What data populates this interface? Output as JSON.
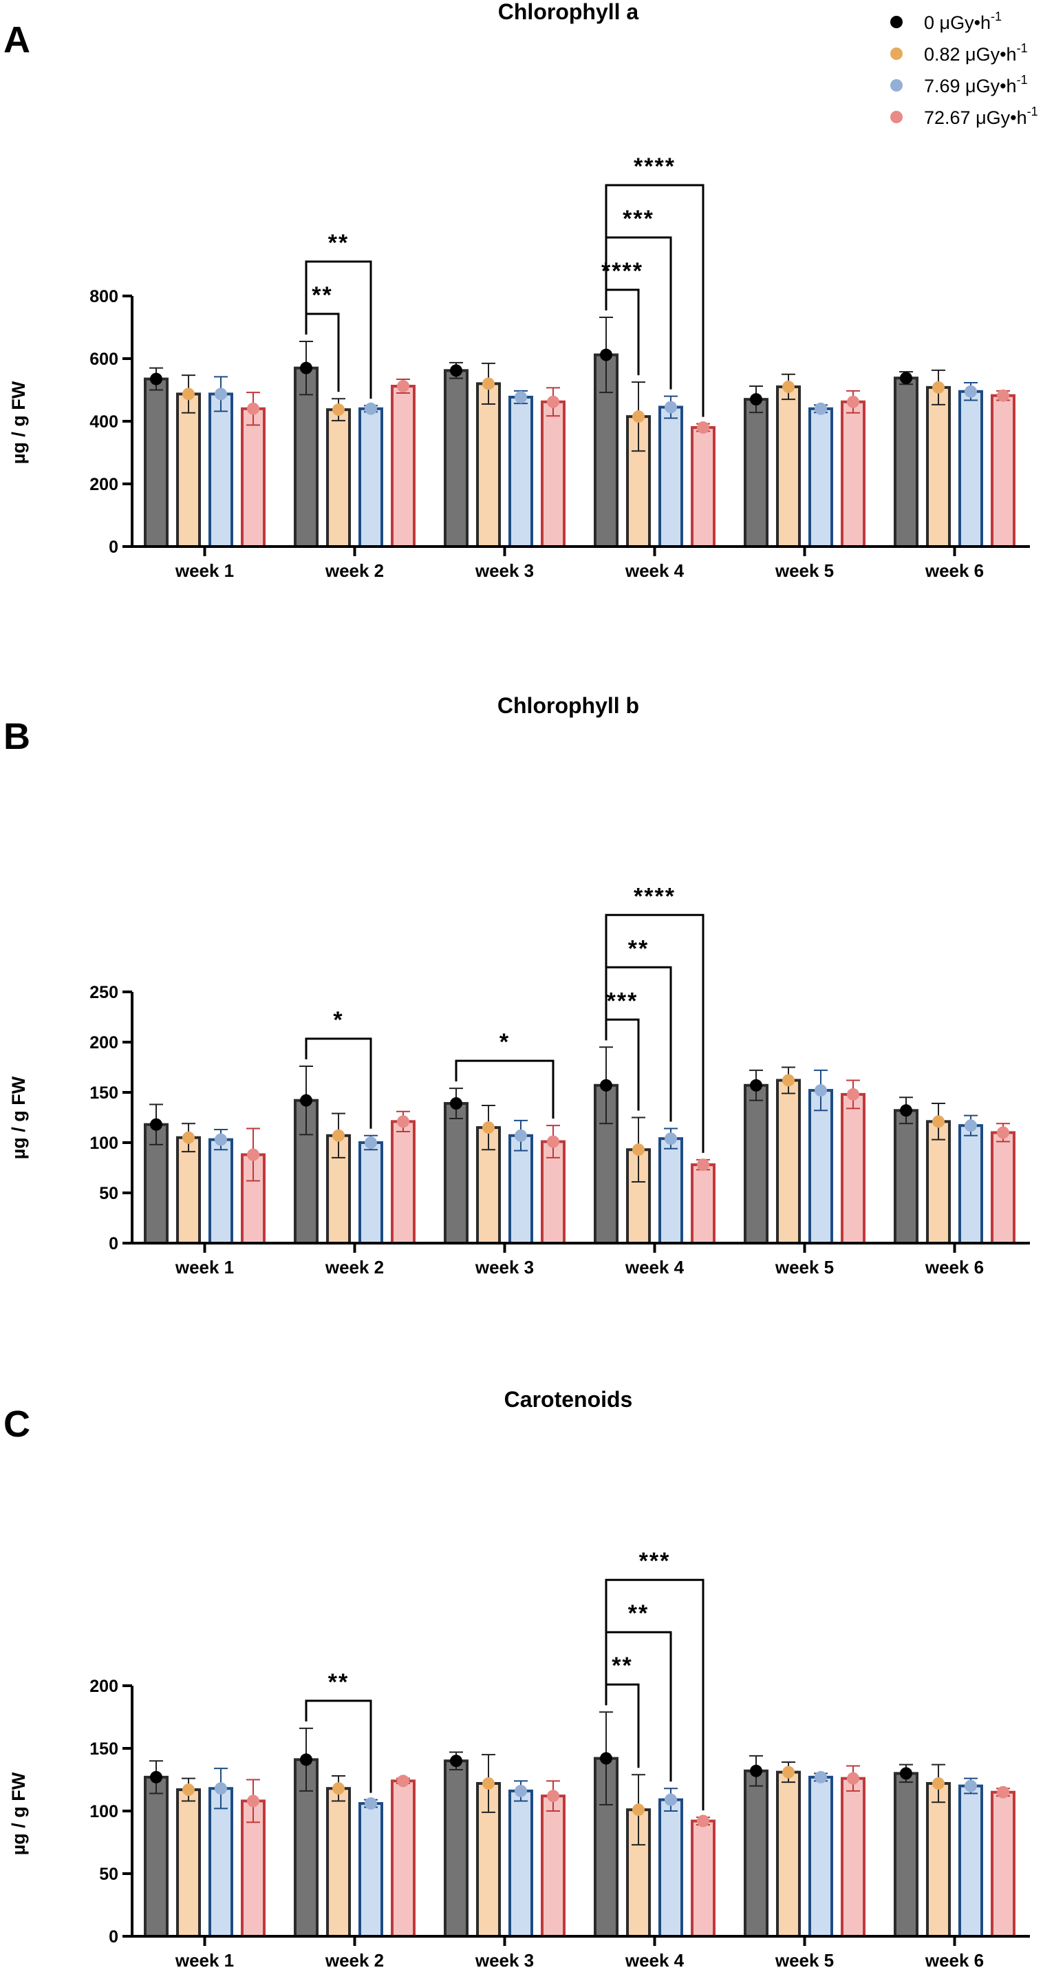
{
  "legend": {
    "entries": [
      {
        "name": "0 μGy•h",
        "sup": "-1",
        "dot": "#000000"
      },
      {
        "name": "0.82 μGy•h",
        "sup": "-1",
        "dot": "#E8A95C"
      },
      {
        "name": "7.69 μGy•h",
        "sup": "-1",
        "dot": "#93AFD6"
      },
      {
        "name": "72.67 μGy•h",
        "sup": "-1",
        "dot": "#E88A86"
      }
    ]
  },
  "styles": {
    "fills": [
      "#747474",
      "#F8D5AE",
      "#CCDDF1",
      "#F6C2C1"
    ],
    "strokes": [
      "#2b2b2b",
      "#2b2b2b",
      "#1E4C84",
      "#C0393B"
    ],
    "dots": [
      "#000000",
      "#E8A95C",
      "#93AFD6",
      "#E88A86"
    ]
  },
  "chart_data": [
    {
      "label": "A",
      "type": "bar",
      "title": "Chlorophyll a",
      "ylabel": "µg / g FW",
      "ylim": [
        0,
        800
      ],
      "yticks": [
        0,
        200,
        400,
        600,
        800
      ],
      "categories": [
        "week 1",
        "week 2",
        "week 3",
        "week 4",
        "week 5",
        "week 6"
      ],
      "series": [
        {
          "name": "0 μGy•h-1",
          "values": [
            535,
            570,
            562,
            612,
            470,
            538
          ],
          "errors": [
            35,
            85,
            25,
            120,
            42,
            20
          ]
        },
        {
          "name": "0.82 μGy•h-1",
          "values": [
            487,
            437,
            520,
            415,
            510,
            508
          ],
          "errors": [
            60,
            35,
            65,
            110,
            40,
            55
          ]
        },
        {
          "name": "7.69 μGy•h-1",
          "values": [
            487,
            440,
            477,
            445,
            440,
            495
          ],
          "errors": [
            55,
            10,
            20,
            35,
            12,
            28
          ]
        },
        {
          "name": "72.67 μGy•h-1",
          "values": [
            440,
            512,
            462,
            380,
            462,
            482
          ],
          "errors": [
            52,
            22,
            45,
            12,
            35,
            15
          ]
        }
      ],
      "significance": [
        {
          "week": 1,
          "from": 0,
          "to": 1,
          "label": "**"
        },
        {
          "week": 1,
          "from": 0,
          "to": 2,
          "label": "**"
        },
        {
          "week": 3,
          "from": 0,
          "to": 1,
          "label": "****"
        },
        {
          "week": 3,
          "from": 0,
          "to": 2,
          "label": "***"
        },
        {
          "week": 3,
          "from": 0,
          "to": 3,
          "label": "****"
        }
      ]
    },
    {
      "label": "B",
      "type": "bar",
      "title": "Chlorophyll b",
      "ylabel": "µg / g FW",
      "ylim": [
        0,
        250
      ],
      "yticks": [
        0,
        50,
        100,
        150,
        200,
        250
      ],
      "categories": [
        "week 1",
        "week 2",
        "week 3",
        "week 4",
        "week 5",
        "week 6"
      ],
      "series": [
        {
          "name": "0 μGy•h-1",
          "values": [
            118,
            142,
            139,
            157,
            157,
            132
          ],
          "errors": [
            20,
            34,
            15,
            38,
            15,
            13
          ]
        },
        {
          "name": "0.82 μGy•h-1",
          "values": [
            105,
            107,
            115,
            93,
            162,
            121
          ],
          "errors": [
            14,
            22,
            22,
            32,
            13,
            18
          ]
        },
        {
          "name": "7.69 μGy•h-1",
          "values": [
            103,
            100,
            107,
            104,
            152,
            117
          ],
          "errors": [
            10,
            7,
            15,
            10,
            20,
            10
          ]
        },
        {
          "name": "72.67 μGy•h-1",
          "values": [
            88,
            121,
            101,
            78,
            148,
            110
          ],
          "errors": [
            26,
            10,
            16,
            5,
            14,
            9
          ]
        }
      ],
      "significance": [
        {
          "week": 1,
          "from": 0,
          "to": 2,
          "label": "*"
        },
        {
          "week": 2,
          "from": 0,
          "to": 3,
          "label": "*"
        },
        {
          "week": 3,
          "from": 0,
          "to": 1,
          "label": "***"
        },
        {
          "week": 3,
          "from": 0,
          "to": 2,
          "label": "**"
        },
        {
          "week": 3,
          "from": 0,
          "to": 3,
          "label": "****"
        }
      ]
    },
    {
      "label": "C",
      "type": "bar",
      "title": "Carotenoids",
      "ylabel": "µg / g FW",
      "ylim": [
        0,
        200
      ],
      "yticks": [
        0,
        50,
        100,
        150,
        200
      ],
      "categories": [
        "week 1",
        "week 2",
        "week 3",
        "week 4",
        "week 5",
        "week 6"
      ],
      "series": [
        {
          "name": "0 μGy•h-1",
          "values": [
            127,
            141,
            140,
            142,
            132,
            130
          ],
          "errors": [
            13,
            25,
            7,
            37,
            12,
            7
          ]
        },
        {
          "name": "0.82 μGy•h-1",
          "values": [
            117,
            118,
            122,
            101,
            131,
            122
          ],
          "errors": [
            9,
            10,
            23,
            28,
            8,
            15
          ]
        },
        {
          "name": "7.69 μGy•h-1",
          "values": [
            118,
            106,
            116,
            109,
            127,
            120
          ],
          "errors": [
            16,
            3,
            8,
            9,
            3,
            6
          ]
        },
        {
          "name": "72.67 μGy•h-1",
          "values": [
            108,
            124,
            112,
            92,
            126,
            115
          ],
          "errors": [
            17,
            2,
            12,
            3,
            10,
            3
          ]
        }
      ],
      "significance": [
        {
          "week": 1,
          "from": 0,
          "to": 2,
          "label": "**"
        },
        {
          "week": 3,
          "from": 0,
          "to": 1,
          "label": "**"
        },
        {
          "week": 3,
          "from": 0,
          "to": 2,
          "label": "**"
        },
        {
          "week": 3,
          "from": 0,
          "to": 3,
          "label": "***"
        }
      ]
    }
  ]
}
